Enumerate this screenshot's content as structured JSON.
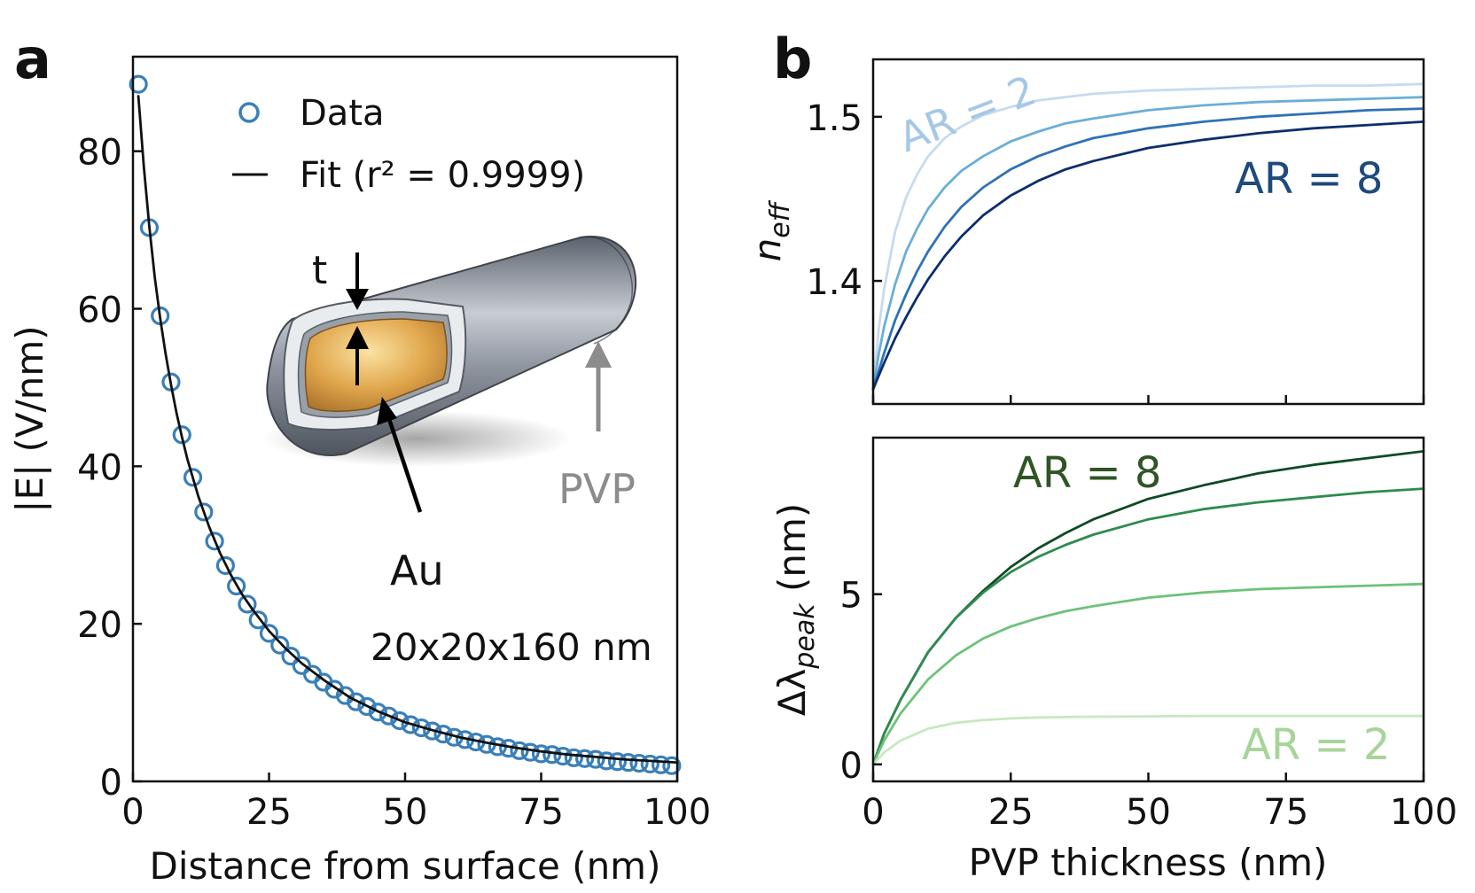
{
  "panels": {
    "a": {
      "label": "a",
      "chart_data": {
        "type": "scatter",
        "xlabel": "Distance from surface (nm)",
        "ylabel": "|E| (V/nm)",
        "xlim": [
          0,
          100
        ],
        "ylim": [
          0,
          92
        ],
        "xticks": [
          0,
          25,
          50,
          75,
          100
        ],
        "yticks": [
          0,
          20,
          40,
          60,
          80
        ],
        "grid": false,
        "legend_position": "top-right",
        "series": [
          {
            "name": "Data",
            "kind": "markers",
            "color": "#3a7fb8",
            "x": [
              1,
              3,
              5,
              7,
              9,
              11,
              13,
              15,
              17,
              19,
              21,
              23,
              25,
              27,
              29,
              31,
              33,
              35,
              37,
              39,
              41,
              43,
              45,
              47,
              49,
              51,
              53,
              55,
              57,
              59,
              61,
              63,
              65,
              67,
              69,
              71,
              73,
              75,
              77,
              79,
              81,
              83,
              85,
              87,
              89,
              91,
              93,
              95,
              97,
              99
            ],
            "y": [
              88.5,
              70.3,
              59.1,
              50.7,
              44.0,
              38.6,
              34.2,
              30.5,
              27.4,
              24.8,
              22.5,
              20.5,
              18.8,
              17.3,
              15.9,
              14.7,
              13.6,
              12.6,
              11.7,
              10.9,
              10.1,
              9.5,
              8.8,
              8.3,
              7.7,
              7.2,
              6.8,
              6.4,
              6.0,
              5.6,
              5.3,
              5.0,
              4.7,
              4.4,
              4.2,
              3.9,
              3.7,
              3.5,
              3.4,
              3.2,
              3.0,
              2.9,
              2.8,
              2.6,
              2.5,
              2.4,
              2.3,
              2.2,
              2.1,
              2.0
            ]
          },
          {
            "name": "Fit (r² = 0.9999)",
            "kind": "line",
            "color": "#111111",
            "x": [
              1,
              2,
              3,
              4,
              5,
              6,
              7,
              8,
              9,
              10,
              12,
              14,
              16,
              18,
              20,
              22,
              25,
              28,
              31,
              35,
              40,
              45,
              50,
              55,
              60,
              65,
              70,
              75,
              80,
              85,
              90,
              95,
              100
            ],
            "y": [
              87.0,
              78.0,
              70.5,
              64.0,
              58.8,
              54.3,
              50.3,
              46.8,
              43.7,
              40.9,
              36.2,
              32.3,
              29.0,
              26.2,
              23.8,
              21.8,
              19.1,
              16.9,
              15.0,
              12.9,
              10.6,
              8.9,
              7.5,
              6.5,
              5.6,
              4.9,
              4.3,
              3.8,
              3.4,
              3.1,
              2.8,
              2.6,
              2.4
            ]
          }
        ],
        "annotations": {
          "t": "t",
          "au": "Au",
          "pvp": "PVP",
          "dimensions": "20x20x160 nm"
        }
      }
    },
    "b": {
      "label": "b",
      "chart_data": [
        {
          "type": "line",
          "id": "neff",
          "xlabel": "",
          "ylabel_main": "n",
          "ylabel_sub": "eff",
          "xlim": [
            0,
            100
          ],
          "ylim": [
            1.325,
            1.535
          ],
          "yticks": [
            1.4,
            1.5
          ],
          "grid": false,
          "series": [
            {
              "name": "AR = 2",
              "color": "#c6dbef",
              "x": [
                0,
                1,
                2,
                4,
                6,
                8,
                10,
                13,
                16,
                20,
                25,
                30,
                35,
                40,
                50,
                60,
                70,
                80,
                90,
                100
              ],
              "y": [
                1.334,
                1.37,
                1.395,
                1.43,
                1.451,
                1.465,
                1.476,
                1.487,
                1.494,
                1.501,
                1.506,
                1.51,
                1.512,
                1.514,
                1.516,
                1.517,
                1.518,
                1.519,
                1.519,
                1.52
              ]
            },
            {
              "name": "",
              "color": "#6baed6",
              "x": [
                0,
                1,
                2,
                4,
                6,
                8,
                10,
                13,
                16,
                20,
                25,
                30,
                35,
                40,
                50,
                60,
                70,
                80,
                90,
                100
              ],
              "y": [
                1.334,
                1.355,
                1.372,
                1.398,
                1.418,
                1.432,
                1.444,
                1.457,
                1.467,
                1.476,
                1.485,
                1.491,
                1.496,
                1.499,
                1.504,
                1.507,
                1.509,
                1.51,
                1.511,
                1.512
              ]
            },
            {
              "name": "",
              "color": "#2f72b6",
              "x": [
                0,
                1,
                2,
                4,
                6,
                8,
                10,
                13,
                16,
                20,
                25,
                30,
                35,
                40,
                50,
                60,
                70,
                80,
                90,
                100
              ],
              "y": [
                1.334,
                1.345,
                1.356,
                1.376,
                1.392,
                1.406,
                1.418,
                1.433,
                1.445,
                1.457,
                1.468,
                1.476,
                1.482,
                1.487,
                1.493,
                1.497,
                1.5,
                1.502,
                1.504,
                1.505
              ]
            },
            {
              "name": "AR = 8",
              "color": "#0b2f6e",
              "x": [
                0,
                1,
                2,
                4,
                6,
                8,
                10,
                13,
                16,
                20,
                25,
                30,
                35,
                40,
                50,
                60,
                70,
                80,
                90,
                100
              ],
              "y": [
                1.334,
                1.342,
                1.35,
                1.365,
                1.378,
                1.39,
                1.401,
                1.415,
                1.427,
                1.44,
                1.452,
                1.461,
                1.468,
                1.473,
                1.481,
                1.486,
                1.49,
                1.493,
                1.495,
                1.497
              ]
            }
          ],
          "labels": {
            "low": "AR = 2",
            "high": "AR = 8"
          }
        },
        {
          "type": "line",
          "id": "dlambda",
          "xlabel": "PVP thickness (nm)",
          "ylabel_main": "Δλ",
          "ylabel_sub": "peak",
          "ylabel_unit": " (nm)",
          "xlim": [
            0,
            100
          ],
          "xticks": [
            0,
            25,
            50,
            75,
            100
          ],
          "ylim": [
            -0.5,
            9.6
          ],
          "yticks": [
            0,
            5
          ],
          "grid": false,
          "series": [
            {
              "name": "AR = 8",
              "color": "#0f4a26",
              "x": [
                0,
                2,
                5,
                10,
                15,
                20,
                25,
                30,
                35,
                40,
                50,
                60,
                70,
                80,
                90,
                100
              ],
              "y": [
                0,
                0.9,
                1.9,
                3.3,
                4.3,
                5.1,
                5.8,
                6.35,
                6.8,
                7.2,
                7.8,
                8.2,
                8.55,
                8.8,
                9.0,
                9.2
              ]
            },
            {
              "name": "",
              "color": "#2e8b4e",
              "x": [
                0,
                2,
                5,
                10,
                15,
                20,
                25,
                30,
                35,
                40,
                50,
                60,
                70,
                80,
                90,
                100
              ],
              "y": [
                0,
                0.9,
                1.9,
                3.3,
                4.3,
                5.05,
                5.65,
                6.1,
                6.45,
                6.75,
                7.2,
                7.5,
                7.7,
                7.85,
                8.0,
                8.1
              ]
            },
            {
              "name": "",
              "color": "#6dc27a",
              "x": [
                0,
                2,
                5,
                10,
                15,
                20,
                25,
                30,
                35,
                40,
                50,
                60,
                70,
                80,
                90,
                100
              ],
              "y": [
                0,
                0.7,
                1.5,
                2.5,
                3.2,
                3.7,
                4.05,
                4.3,
                4.5,
                4.65,
                4.9,
                5.05,
                5.15,
                5.2,
                5.25,
                5.3
              ]
            },
            {
              "name": "AR = 2",
              "color": "#c7e9c0",
              "x": [
                0,
                2,
                5,
                10,
                15,
                20,
                25,
                30,
                40,
                50,
                60,
                70,
                80,
                90,
                100
              ],
              "y": [
                0,
                0.35,
                0.7,
                1.05,
                1.22,
                1.3,
                1.35,
                1.38,
                1.4,
                1.41,
                1.42,
                1.42,
                1.42,
                1.42,
                1.42
              ]
            }
          ],
          "labels": {
            "high": "AR = 8",
            "low": "AR = 2"
          }
        }
      ]
    }
  }
}
